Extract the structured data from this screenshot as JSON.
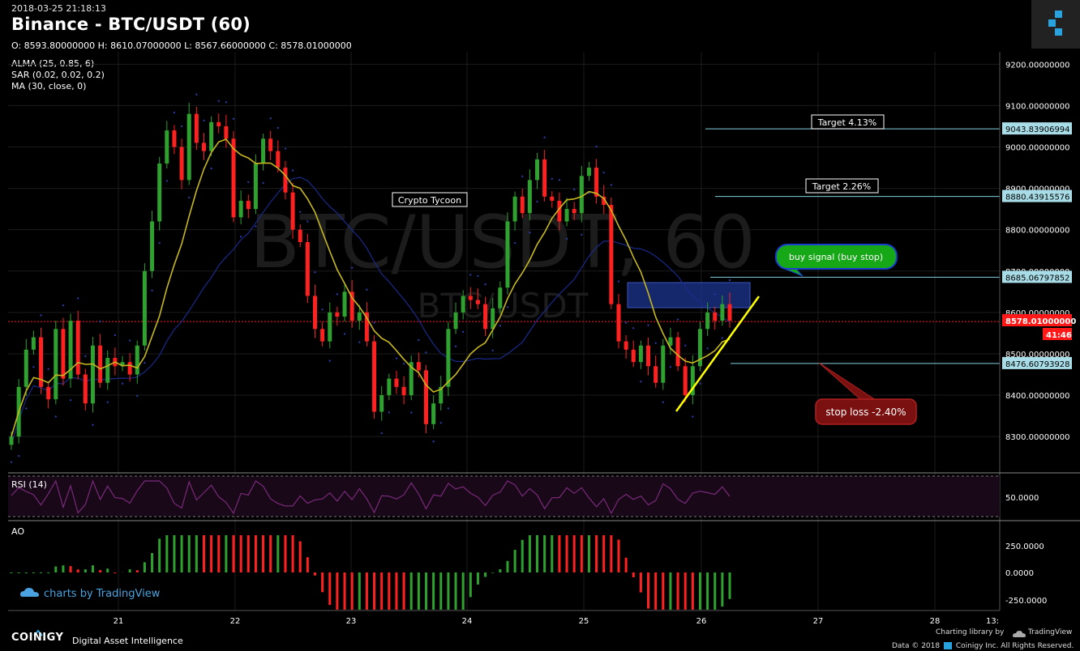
{
  "header": {
    "timestamp": "2018-03-25 21:18:13",
    "title": "Binance - BTC/USDT (60)",
    "ohlc": "O: 8593.80000000 H: 8610.07000000 L: 8567.66000000 C: 8578.01000000",
    "indicators": [
      "ALMA (25, 0.85, 6)",
      "SAR (0.02, 0.02, 0.2)",
      "MA (30, close, 0)"
    ]
  },
  "watermark": {
    "main": "BTC/USDT, 60",
    "sub": "BTC/USDT"
  },
  "annotations": {
    "crypto_tycoon": "Crypto Tycoon",
    "target1": "Target 4.13%",
    "target2": "Target 2.26%",
    "buy_signal": "buy signal (buy stop)",
    "stop_loss": "stop loss -2.40%"
  },
  "price_axis": {
    "ticks": [
      "9200.00000000",
      "9100.00000000",
      "9000.00000000",
      "8900.00000000",
      "8800.00000000",
      "8700.00000000",
      "8600.00000000",
      "8500.00000000",
      "8400.00000000",
      "8300.00000000"
    ],
    "levels": [
      {
        "label": "9043.83906994",
        "value": 9043.84
      },
      {
        "label": "8880.43915576",
        "value": 8880.44
      },
      {
        "label": "8685.06797852",
        "value": 8685.07
      },
      {
        "label": "8476.60793928",
        "value": 8476.61
      }
    ],
    "last_price": "8578.01000000",
    "countdown": "41:46"
  },
  "rsi": {
    "label": "RSI (14)",
    "tick": "50.0000"
  },
  "ao": {
    "label": "AO",
    "ticks": [
      "250.0000",
      "0.0000",
      "-250.0000"
    ]
  },
  "x_axis": {
    "ticks": [
      "21",
      "22",
      "23",
      "24",
      "25",
      "26",
      "27",
      "28",
      "13:"
    ]
  },
  "branding": {
    "tradingview": "charts by TradingView",
    "coinigy": "COINIGY",
    "tagline": "Digital Asset Intelligence",
    "charting_library": "Charting library by",
    "tv_name": "TradingView",
    "copyright": "Data © 2018",
    "copyright_rest": "Coinigy Inc. All Rights Reserved."
  },
  "colors": {
    "up": "#2ea12e",
    "down": "#ff2020",
    "alma": "#c8b820",
    "ma": "#1a2a8a",
    "sar": "#2a3aa0",
    "rsi": "#7a2a7a",
    "trend": "#ffff00",
    "buy": "#17a817",
    "stop": "#7a1010"
  },
  "chart_data": {
    "type": "candlestick",
    "title": "Binance - BTC/USDT (60)",
    "x_ticks": [
      "21",
      "22",
      "23",
      "24",
      "25",
      "26",
      "27",
      "28"
    ],
    "ylim": [
      8220,
      9230
    ],
    "y_ticks": [
      8300,
      8400,
      8500,
      8600,
      8700,
      8800,
      8900,
      9000,
      9100,
      9200
    ],
    "close_series": [
      8300,
      8420,
      8510,
      8540,
      8420,
      8390,
      8560,
      8440,
      8580,
      8450,
      8380,
      8520,
      8430,
      8490,
      8470,
      8480,
      8450,
      8520,
      8700,
      8820,
      8960,
      9040,
      9000,
      8920,
      9080,
      9010,
      8990,
      9060,
      9050,
      9020,
      8830,
      8870,
      8850,
      8960,
      9020,
      8990,
      8950,
      8890,
      8800,
      8770,
      8640,
      8560,
      8530,
      8600,
      8590,
      8650,
      8580,
      8600,
      8530,
      8360,
      8400,
      8440,
      8420,
      8400,
      8480,
      8460,
      8330,
      8380,
      8420,
      8560,
      8600,
      8640,
      8630,
      8620,
      8560,
      8610,
      8660,
      8820,
      8880,
      8840,
      8920,
      8970,
      8880,
      8870,
      8820,
      8850,
      8840,
      8930,
      8950,
      8880,
      8860,
      8620,
      8530,
      8510,
      8480,
      8520,
      8470,
      8430,
      8520,
      8540,
      8470,
      8400,
      8470,
      8560,
      8600,
      8580,
      8620,
      8580
    ],
    "levels": {
      "target_4_13": 9043.84,
      "target_2_26": 8880.44,
      "entry": 8685.07,
      "stop": 8476.61,
      "last": 8578.01
    },
    "rsi_level": 50,
    "ao_range": [
      -250,
      250
    ]
  }
}
